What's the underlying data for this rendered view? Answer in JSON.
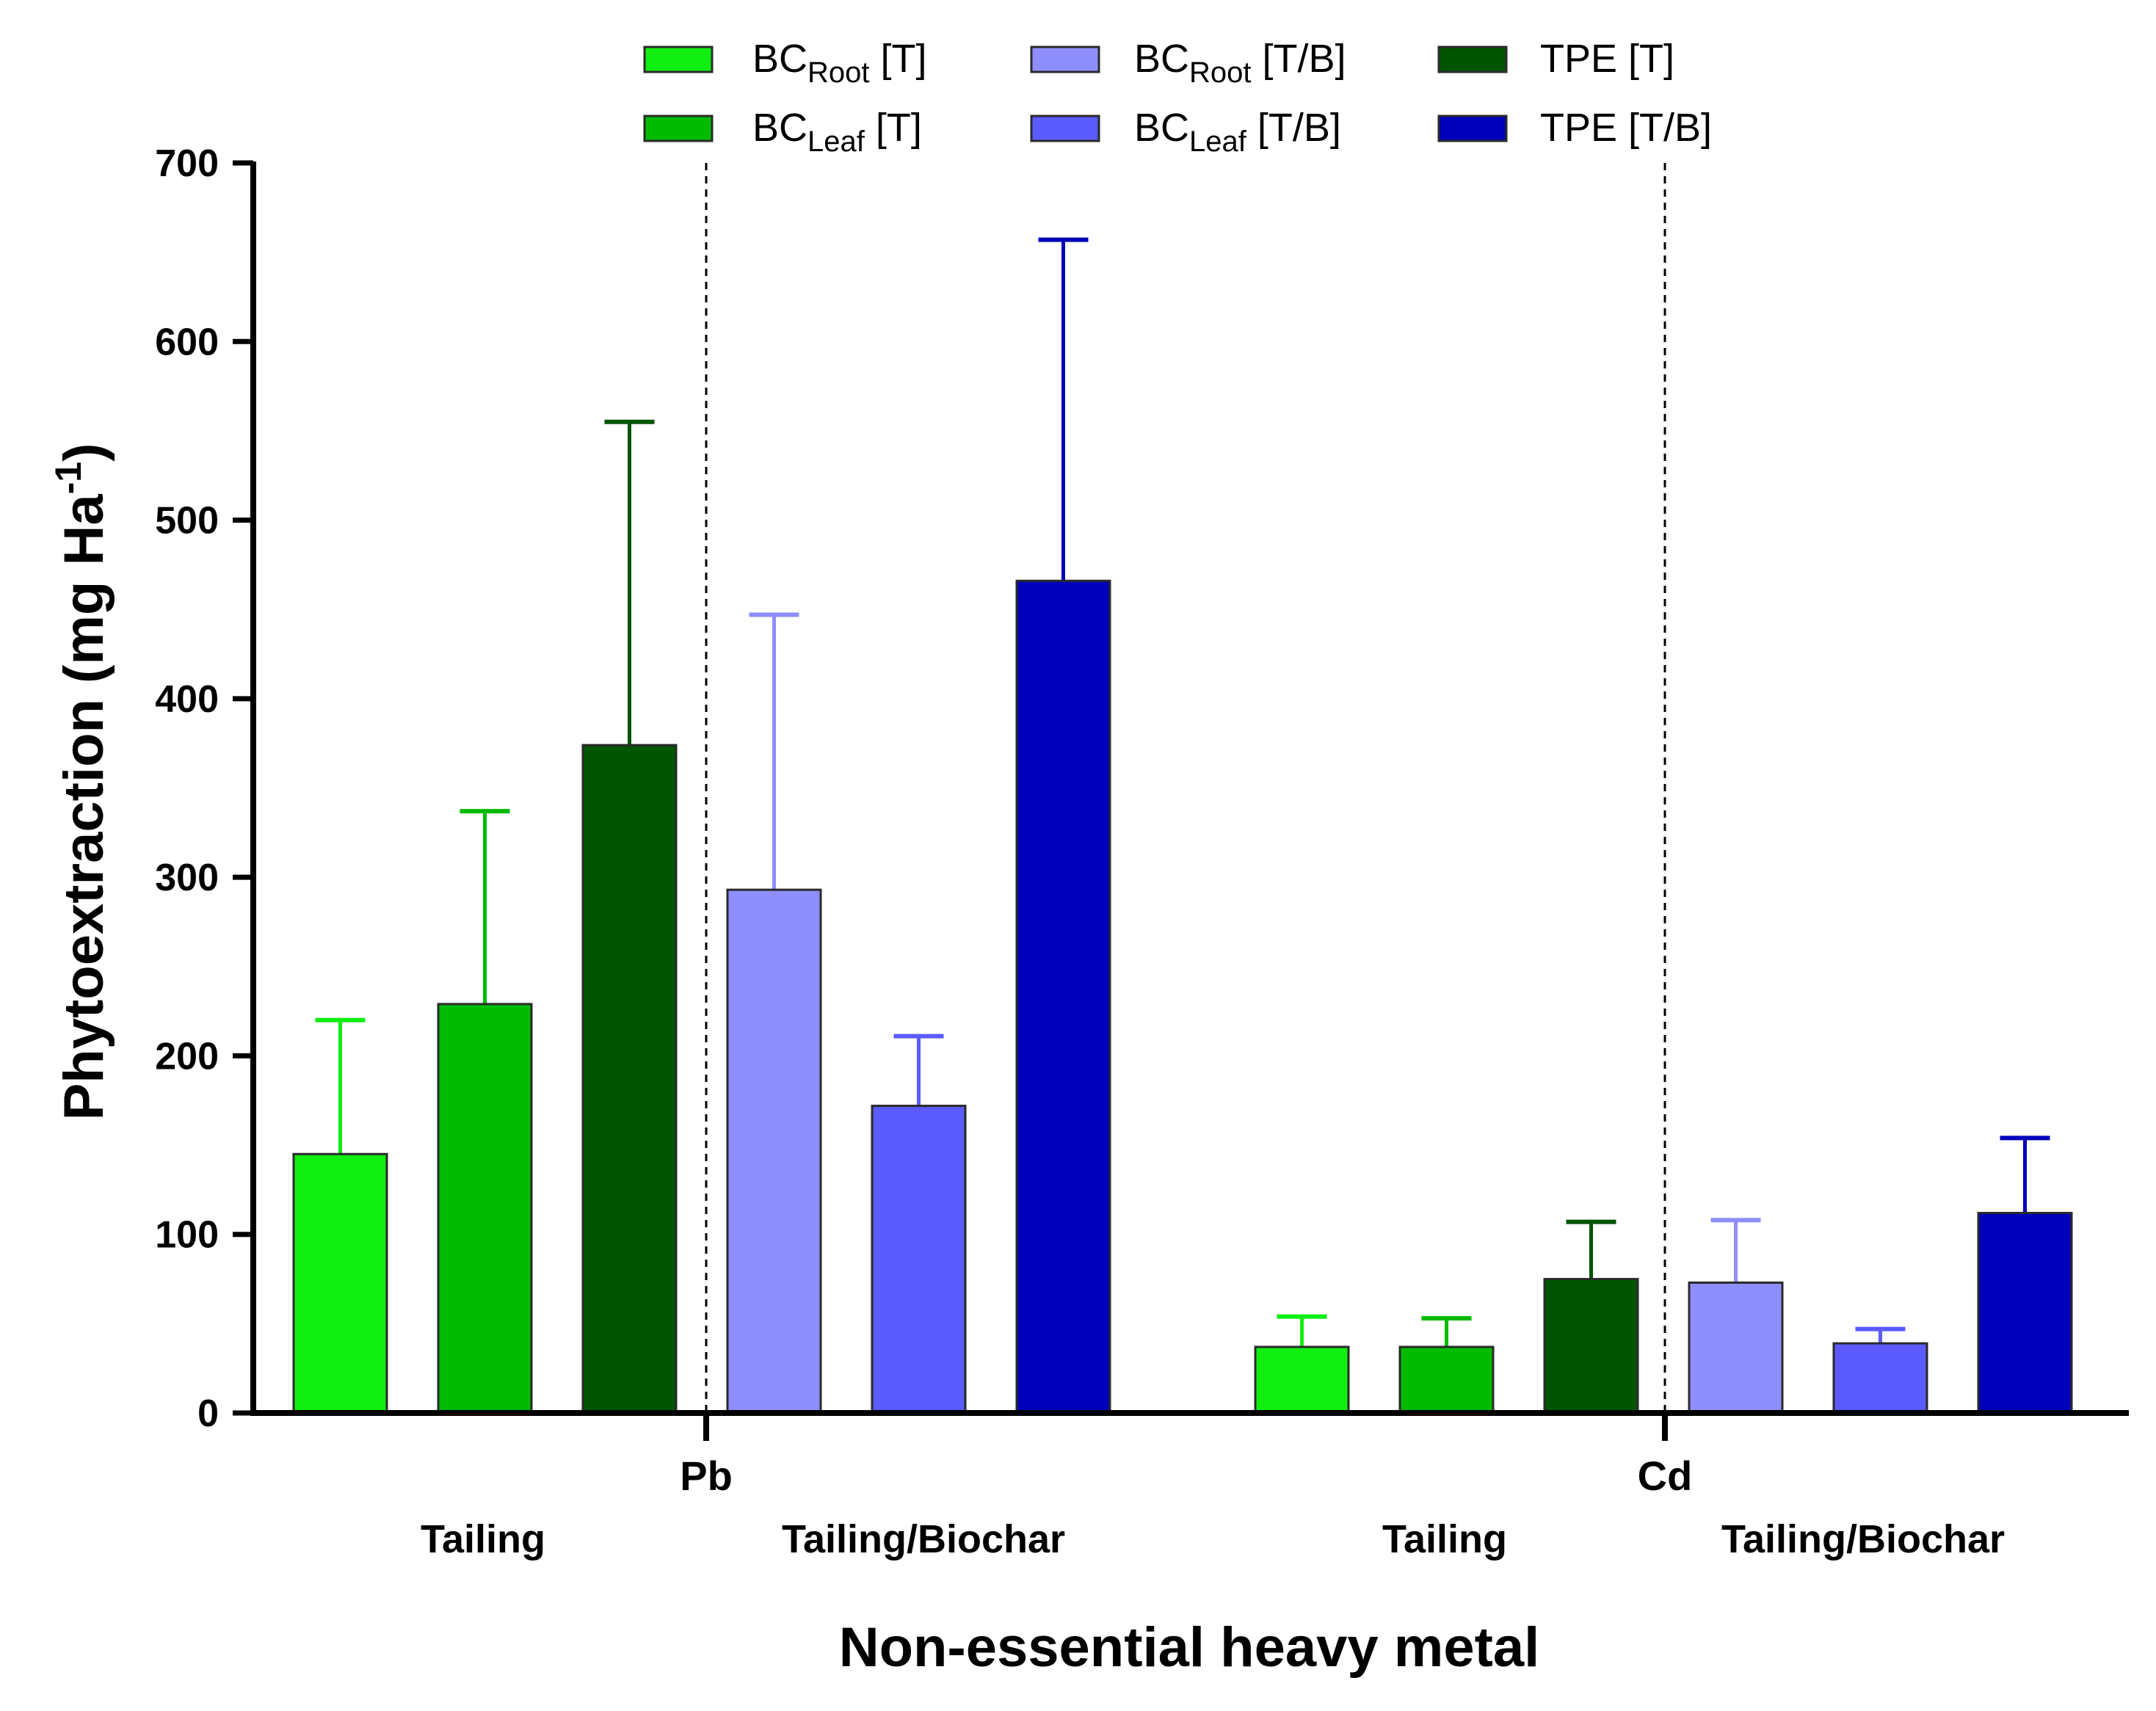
{
  "chart_data": {
    "type": "bar",
    "title": "",
    "xlabel": "Non-essential heavy metal",
    "ylabel": {
      "text": "Phytoextraction (mg Ha",
      "superscript": "-1",
      "close": ")"
    },
    "ylim": [
      0,
      700
    ],
    "yticks": [
      "0",
      "100",
      "200",
      "300",
      "400",
      "500",
      "600",
      "700"
    ],
    "categories": [
      "Pb",
      "Cd"
    ],
    "subgroups": [
      {
        "group": "Pb",
        "label": "Tailing"
      },
      {
        "group": "Pb",
        "label": "Tailing/Biochar"
      },
      {
        "group": "Cd",
        "label": "Tailing"
      },
      {
        "group": "Cd",
        "label": "Tailing/Biochar"
      }
    ],
    "legend_position": "top",
    "series": [
      {
        "name": "BC_Root [T]",
        "legend": {
          "main": "BC",
          "sub": "Root",
          "rest": " [T]"
        },
        "color": "#11ee11",
        "values": [
          145,
          37
        ],
        "errors": [
          75,
          17
        ]
      },
      {
        "name": "BC_Leaf [T]",
        "legend": {
          "main": "BC",
          "sub": "Leaf",
          "rest": " [T]"
        },
        "color": "#00bb00",
        "values": [
          229,
          37
        ],
        "errors": [
          108,
          16
        ]
      },
      {
        "name": "TPE [T]",
        "legend": {
          "main": "TPE [T]",
          "sub": "",
          "rest": ""
        },
        "color": "#005500",
        "values": [
          374,
          75
        ],
        "errors": [
          181,
          32
        ]
      },
      {
        "name": "BC_Root [T/B]",
        "legend": {
          "main": "BC",
          "sub": "Root",
          "rest": " [T/B]"
        },
        "color": "#8e8eff",
        "values": [
          293,
          73
        ],
        "errors": [
          154,
          35
        ]
      },
      {
        "name": "BC_Leaf [T/B]",
        "legend": {
          "main": "BC",
          "sub": "Leaf",
          "rest": " [T/B]"
        },
        "color": "#5b5bff",
        "values": [
          172,
          39
        ],
        "errors": [
          39,
          8
        ]
      },
      {
        "name": "TPE [T/B]",
        "legend": {
          "main": "TPE [T/B]",
          "sub": "",
          "rest": ""
        },
        "color": "#0000bb",
        "values": [
          466,
          112
        ],
        "errors": [
          191,
          42
        ]
      }
    ]
  }
}
